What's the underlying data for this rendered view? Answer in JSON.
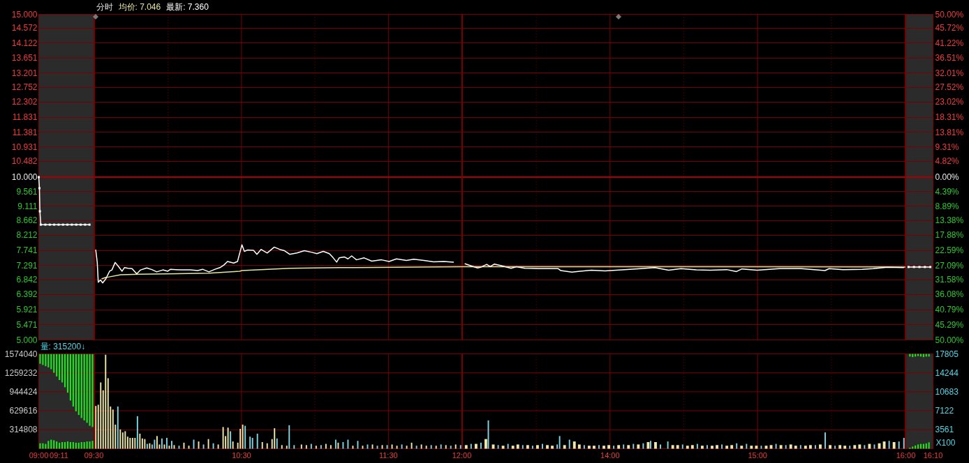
{
  "chart_data": [
    {
      "type": "line",
      "grid": true,
      "tick_labels": "y",
      "marker": "square",
      "xlim": [
        9,
        9.5
      ],
      "ylim": [
        5,
        15
      ],
      "yticks": [
        {
          "value": 5,
          "label": "5.000"
        },
        5.471,
        5.921,
        6.392,
        6.842,
        7.291,
        7.741,
        8.212,
        8.662,
        9.111,
        9.561,
        {
          "value": 10,
          "label": "10.000"
        },
        10.482,
        10.931,
        11.381,
        11.831,
        12.302,
        12.752,
        13.201,
        13.651,
        14.122,
        14.572,
        {
          "value": 15,
          "label": "15.000"
        }
      ],
      "ref_lines": [
        {
          "axis": "y",
          "value": 10,
          "color": "#a80000"
        }
      ],
      "bands": [
        {
          "axis": "x",
          "from": 9,
          "to": 9.5,
          "color": "#2b2b2b"
        }
      ],
      "series": [
        {
          "color": "#ffffff",
          "x": [
            9,
            9.0063,
            9.0106,
            9.0188,
            9.06,
            9.1,
            9.14,
            9.18,
            9.22,
            9.26,
            9.3,
            9.34,
            9.38,
            9.42,
            9.46
          ],
          "values": [
            10.0,
            9.66,
            8.95,
            8.54,
            8.54,
            8.54,
            8.54,
            8.54,
            8.54,
            8.54,
            8.54,
            8.54,
            8.54,
            8.54,
            8.54
          ]
        }
      ]
    },
    {
      "type": "line",
      "title": "分时",
      "legend": "top left",
      "grid": true,
      "tick_labels": false,
      "xlim": [
        9.5,
        12
      ],
      "xticks": [
        9.5,
        {
          "value": 10,
          "label": null
        },
        10.5,
        {
          "value": 11,
          "label": null
        },
        11.5,
        12
      ],
      "ylim": [
        5,
        15
      ],
      "yticks": [
        5,
        5.471,
        5.921,
        6.392,
        6.842,
        7.291,
        7.741,
        8.212,
        8.662,
        9.111,
        9.561,
        10,
        10.482,
        10.931,
        11.381,
        11.831,
        12.302,
        12.752,
        13.201,
        13.651,
        14.122,
        14.572,
        15
      ],
      "ref_lines": [
        {
          "axis": "y",
          "value": 10,
          "color": "#a80000"
        }
      ],
      "series": [
        {
          "name": "均价: 7.046",
          "color": "#e6e6a0",
          "x": [
            9.55,
            9.578,
            9.593,
            9.678,
            9.812,
            10.28,
            10.488,
            10.503,
            10.833,
            11.165,
            11.7,
            12.0
          ],
          "values": [
            6.88,
            6.92,
            6.93,
            7.0,
            7.02,
            7.05,
            7.11,
            7.13,
            7.2,
            7.22,
            7.24,
            7.25
          ]
        },
        {
          "name": "最新: 7.360",
          "color": "#ffffff",
          "x": [
            9.508,
            9.518,
            9.525,
            9.54,
            9.555,
            9.577,
            9.602,
            9.618,
            9.64,
            9.662,
            9.687,
            9.703,
            9.728,
            9.755,
            9.787,
            9.813,
            9.855,
            9.89,
            9.923,
            9.965,
            9.998,
            10.017,
            10.083,
            10.152,
            10.202,
            10.235,
            10.278,
            10.32,
            10.353,
            10.38,
            10.405,
            10.447,
            10.473,
            10.503,
            10.52,
            10.54,
            10.582,
            10.605,
            10.633,
            10.675,
            10.723,
            10.76,
            10.793,
            10.828,
            10.878,
            10.928,
            10.98,
            11.013,
            11.057,
            11.098,
            11.123,
            11.148,
            11.165,
            11.2,
            11.225,
            11.25,
            11.283,
            11.335,
            11.387,
            11.453,
            11.505,
            11.555,
            11.623,
            11.673,
            11.742,
            11.808,
            11.877,
            11.943
          ],
          "values": [
            7.76,
            7.38,
            6.77,
            6.84,
            6.75,
            6.88,
            7.11,
            7.15,
            7.38,
            7.26,
            7.11,
            7.22,
            7.2,
            7.19,
            7.03,
            7.15,
            7.21,
            7.16,
            7.09,
            7.15,
            7.11,
            7.17,
            7.15,
            7.15,
            7.13,
            7.17,
            7.09,
            7.17,
            7.22,
            7.3,
            7.41,
            7.36,
            7.41,
            7.92,
            7.72,
            7.76,
            7.75,
            7.63,
            7.78,
            7.67,
            7.85,
            7.78,
            7.74,
            7.63,
            7.67,
            7.74,
            7.69,
            7.65,
            7.72,
            7.65,
            7.53,
            7.39,
            7.52,
            7.55,
            7.49,
            7.58,
            7.46,
            7.52,
            7.42,
            7.46,
            7.41,
            7.49,
            7.44,
            7.48,
            7.44,
            7.4,
            7.41,
            7.39
          ]
        }
      ]
    },
    {
      "type": "line",
      "grid": true,
      "tick_labels": false,
      "xlim": [
        13,
        16
      ],
      "xticks": [
        13,
        {
          "value": 13.5,
          "label": null
        },
        14,
        {
          "value": 14.5,
          "label": null
        },
        15,
        {
          "value": 15.5,
          "label": null
        },
        16
      ],
      "ylim": [
        5,
        15
      ],
      "yticks": [
        5,
        5.471,
        5.921,
        6.392,
        6.842,
        7.291,
        7.741,
        8.212,
        8.662,
        9.111,
        9.561,
        10,
        10.482,
        10.931,
        11.381,
        11.831,
        12.302,
        12.752,
        13.201,
        13.651,
        14.122,
        14.572,
        15
      ],
      "ref_lines": [
        {
          "axis": "y",
          "value": 10,
          "color": "#a80000"
        }
      ],
      "series": [
        {
          "color": "#e6e6a0",
          "x": [
            13.0,
            13.652,
            14.597,
            16.0
          ],
          "values": [
            7.25,
            7.25,
            7.25,
            7.24
          ]
        },
        {
          "color": "#ffffff",
          "x": [
            13.017,
            13.068,
            13.102,
            13.123,
            13.164,
            13.188,
            13.216,
            13.263,
            13.329,
            13.366,
            13.422,
            13.516,
            13.647,
            13.666,
            13.741,
            13.797,
            13.873,
            13.966,
            14.079,
            14.209,
            14.303,
            14.397,
            14.481,
            14.585,
            14.679,
            14.791,
            14.857,
            14.894,
            14.997,
            15.147,
            15.297,
            15.457,
            15.485,
            15.579,
            15.71,
            15.784,
            15.878,
            15.99
          ],
          "values": [
            7.34,
            7.26,
            7.21,
            7.23,
            7.32,
            7.25,
            7.33,
            7.28,
            7.2,
            7.25,
            7.2,
            7.19,
            7.19,
            7.13,
            7.08,
            7.11,
            7.14,
            7.12,
            7.15,
            7.19,
            7.22,
            7.14,
            7.19,
            7.15,
            7.14,
            7.16,
            7.1,
            7.18,
            7.14,
            7.19,
            7.19,
            7.13,
            7.19,
            7.16,
            7.17,
            7.19,
            7.23,
            7.22
          ]
        }
      ]
    },
    {
      "type": "line",
      "grid": true,
      "tick_labels": "y",
      "marker": "square",
      "xlim": [
        16,
        16.1667
      ],
      "xticks": [
        16,
        16.1667
      ],
      "ylim": [
        -50,
        50
      ],
      "yticks": [
        {
          "value": -50,
          "label": "50.00%"
        },
        {
          "value": -45.29,
          "label": "45.29%"
        },
        {
          "value": -40.79,
          "label": "40.79%"
        },
        {
          "value": -36.08,
          "label": "36.08%"
        },
        {
          "value": -31.58,
          "label": "31.58%"
        },
        {
          "value": -27.09,
          "label": "27.09%"
        },
        {
          "value": -22.59,
          "label": "22.59%"
        },
        {
          "value": -17.88,
          "label": "17.88%"
        },
        {
          "value": -13.38,
          "label": "13.38%"
        },
        {
          "value": -8.89,
          "label": "8.89%"
        },
        {
          "value": -4.39,
          "label": "4.39%"
        },
        {
          "value": 0,
          "label": "0.00%"
        },
        {
          "value": 4.82,
          "label": "4.82%"
        },
        {
          "value": 9.31,
          "label": "9.31%"
        },
        {
          "value": 13.81,
          "label": "13.81%"
        },
        {
          "value": 18.31,
          "label": "18.31%"
        },
        {
          "value": 23.02,
          "label": "23.02%"
        },
        {
          "value": 27.52,
          "label": "27.52%"
        },
        {
          "value": 32.01,
          "label": "32.01%"
        },
        {
          "value": 36.51,
          "label": "36.51%"
        },
        {
          "value": 41.22,
          "label": "41.22%"
        },
        {
          "value": 45.72,
          "label": "45.72%"
        },
        {
          "value": 50,
          "label": "50.00%"
        }
      ],
      "ref_lines": [
        {
          "axis": "y",
          "value": 0,
          "color": "#a80000"
        }
      ],
      "bands": [
        {
          "axis": "x",
          "from": 16,
          "to": 16.1667,
          "color": "#2b2b2b"
        }
      ],
      "series": [
        {
          "color": "#ffffff",
          "x": [
            16.0167,
            16.05,
            16.0833,
            16.1167,
            16.15
          ],
          "values": [
            -27.6,
            -27.6,
            -27.6,
            -27.6,
            -27.6
          ]
        }
      ]
    },
    {
      "type": "bar",
      "title": "量: 315200↓",
      "grid": true,
      "xlim": [
        9,
        9.5
      ],
      "xticks": [
        {
          "value": 9,
          "label": "09:00"
        },
        {
          "value": 9.1833,
          "label": "09:11"
        },
        {
          "value": 9.5,
          "label": "09:30"
        }
      ],
      "ylim": [
        0,
        1574040
      ],
      "yticks": [
        314808,
        629616,
        944424,
        1259232,
        1574040
      ],
      "bands": [
        {
          "axis": "x",
          "from": 9,
          "to": 9.5,
          "color": "#2b2b2b"
        }
      ],
      "series": [
        {
          "color": "#22e022",
          "x": [
            9.0125,
            9.0375,
            9.0625,
            9.0875,
            9.1125,
            9.1375,
            9.1625,
            9.1875,
            9.2125,
            9.2375,
            9.2625,
            9.2875,
            9.3125,
            9.3375,
            9.3625,
            9.3875,
            9.4125,
            9.4375,
            9.4625,
            9.4875
          ],
          "base": [
            1410000,
            1390000,
            1370000,
            1350000,
            1320000,
            1260000,
            1200000,
            1140000,
            1100000,
            1020000,
            930000,
            800000,
            700000,
            620000,
            560000,
            510000,
            470000,
            430000,
            380000,
            360000
          ],
          "values": [
            160000,
            180000,
            200000,
            220000,
            250000,
            310000,
            370000,
            430000,
            470000,
            550000,
            640000,
            770000,
            870000,
            950000,
            1010000,
            1060000,
            1100000,
            1140000,
            1190000,
            1210000
          ]
        },
        {
          "color": "#22e022",
          "x": [
            9.0125,
            9.0375,
            9.0625,
            9.0875,
            9.1125,
            9.1375,
            9.1625,
            9.1875,
            9.2125,
            9.2375,
            9.2625,
            9.2875,
            9.3125,
            9.3375,
            9.3625,
            9.3875,
            9.4125,
            9.4375,
            9.4625,
            9.4875
          ],
          "values": [
            90000,
            90000,
            80000,
            130000,
            150000,
            140000,
            120000,
            100000,
            110000,
            110000,
            120000,
            110000,
            110000,
            100000,
            100000,
            110000,
            110000,
            120000,
            120000,
            130000
          ]
        }
      ]
    },
    {
      "type": "bar",
      "grid": true,
      "tick_labels": "x",
      "xlim": [
        9.5,
        12
      ],
      "xticks": [
        {
          "value": 10,
          "label": null
        },
        {
          "value": 10.5,
          "label": "10:30"
        },
        {
          "value": 11,
          "label": null
        },
        {
          "value": 11.5,
          "label": "11:30"
        },
        {
          "value": 12,
          "label": "12:00"
        }
      ],
      "ylim": [
        0,
        1574040
      ],
      "yticks": [
        314808,
        629616,
        944424,
        1259232,
        1574040
      ],
      "series": [
        {
          "color": "#eee8aa",
          "x": [
            9.5083,
            9.525,
            9.5417,
            9.5583,
            9.575,
            9.5917,
            9.6083,
            9.625,
            9.6417,
            9.675,
            9.6917,
            9.7083,
            9.725,
            9.7417,
            9.7583,
            9.775,
            9.8083,
            9.825,
            9.8417,
            9.875,
            9.925,
            9.9417,
            9.975,
            10.0083,
            10.0417,
            10.1083,
            10.1417,
            10.2083,
            10.275,
            10.3417,
            10.375,
            10.3917,
            10.4083,
            10.4417,
            10.475,
            10.4917,
            10.5083,
            10.6417,
            10.675,
            10.7083,
            10.725,
            10.775,
            10.8083,
            10.9083,
            10.9417,
            11.0083,
            11.075,
            11.1083,
            11.1583,
            11.2583,
            11.325,
            11.3917,
            11.4583,
            11.525,
            11.5583,
            11.625,
            11.6583,
            11.725,
            11.7583,
            11.825,
            11.8917,
            11.9583
          ],
          "values": [
            710000,
            730000,
            1100000,
            970000,
            1560000,
            1170000,
            700000,
            650000,
            400000,
            320000,
            270000,
            290000,
            200000,
            180000,
            180000,
            180000,
            250000,
            170000,
            160000,
            90000,
            210000,
            70000,
            70000,
            50000,
            60000,
            100000,
            50000,
            120000,
            160000,
            70000,
            360000,
            210000,
            350000,
            120000,
            100000,
            330000,
            400000,
            110000,
            90000,
            160000,
            340000,
            60000,
            50000,
            70000,
            60000,
            50000,
            80000,
            60000,
            100000,
            50000,
            50000,
            70000,
            60000,
            70000,
            50000,
            50000,
            100000,
            70000,
            50000,
            50000,
            60000,
            70000
          ]
        },
        {
          "color": "#7fd4e4",
          "x": [
            9.6583,
            9.7917,
            9.8583,
            9.8917,
            9.9083,
            9.9583,
            9.9917,
            10.025,
            10.075,
            10.175,
            10.2417,
            10.3083,
            10.425,
            10.525,
            10.5583,
            10.575,
            10.6083,
            10.7417,
            10.825,
            10.8583,
            10.975,
            11.0417,
            11.1417,
            11.1917,
            11.225,
            11.2917,
            11.3583,
            11.425,
            11.4917,
            11.5917,
            11.6917,
            11.7917,
            11.8583,
            11.925,
            11.9917
          ],
          "values": [
            700000,
            540000,
            80000,
            70000,
            150000,
            170000,
            180000,
            130000,
            50000,
            150000,
            70000,
            90000,
            290000,
            380000,
            200000,
            180000,
            250000,
            170000,
            390000,
            60000,
            80000,
            60000,
            150000,
            110000,
            150000,
            130000,
            70000,
            50000,
            60000,
            70000,
            50000,
            60000,
            70000,
            50000,
            60000
          ]
        }
      ]
    },
    {
      "type": "bar",
      "grid": true,
      "tick_labels": "x",
      "xlim": [
        13,
        16
      ],
      "xticks": [
        {
          "value": 13.5,
          "label": null
        },
        {
          "value": 14,
          "label": "14:00"
        },
        {
          "value": 14.5,
          "label": null
        },
        {
          "value": 15,
          "label": "15:00"
        },
        {
          "value": 15.5,
          "label": null
        }
      ],
      "ylim": [
        0,
        1574040
      ],
      "yticks": [
        314808,
        629616,
        944424,
        1259232,
        1574040
      ],
      "series": [
        {
          "color": "#eee8aa",
          "x": [
            13.025,
            13.0917,
            13.1583,
            13.2083,
            13.275,
            13.3417,
            13.375,
            13.4417,
            13.5083,
            13.575,
            13.6083,
            13.6917,
            13.7583,
            13.7917,
            13.8583,
            13.8917,
            13.9583,
            13.9917,
            14.0583,
            14.125,
            14.1917,
            14.2583,
            14.3083,
            14.425,
            14.4583,
            14.525,
            14.5583,
            14.625,
            14.6917,
            14.725,
            14.7917,
            14.825,
            14.8917,
            14.9583,
            14.9917,
            15.0583,
            15.0917,
            15.1583,
            15.225,
            15.2583,
            15.325,
            15.3583,
            15.425,
            15.4917,
            15.5583,
            15.5917,
            15.6583,
            15.6917,
            15.7583,
            15.825,
            15.8583,
            15.925
          ],
          "values": [
            60000,
            80000,
            160000,
            70000,
            50000,
            50000,
            70000,
            60000,
            60000,
            60000,
            50000,
            60000,
            120000,
            70000,
            50000,
            50000,
            50000,
            60000,
            60000,
            60000,
            70000,
            110000,
            110000,
            60000,
            60000,
            50000,
            60000,
            50000,
            50000,
            60000,
            50000,
            60000,
            50000,
            50000,
            50000,
            50000,
            60000,
            60000,
            70000,
            50000,
            50000,
            60000,
            70000,
            60000,
            60000,
            50000,
            60000,
            70000,
            80000,
            90000,
            120000,
            110000
          ]
        },
        {
          "color": "#7fd4e4",
          "x": [
            13.0583,
            13.125,
            13.175,
            13.2417,
            13.3083,
            13.4083,
            13.475,
            13.5417,
            13.6417,
            13.6583,
            13.725,
            13.825,
            13.925,
            14.025,
            14.0917,
            14.1583,
            14.225,
            14.275,
            14.3417,
            14.3917,
            14.4917,
            14.5917,
            14.6583,
            14.7583,
            14.8583,
            14.925,
            15.025,
            15.125,
            15.1917,
            15.2917,
            15.3917,
            15.4583,
            15.525,
            15.625,
            15.725,
            15.7917,
            15.8917,
            15.9583,
            15.9917
          ],
          "values": [
            80000,
            100000,
            470000,
            60000,
            80000,
            60000,
            50000,
            80000,
            70000,
            210000,
            150000,
            60000,
            60000,
            50000,
            70000,
            80000,
            90000,
            130000,
            70000,
            120000,
            70000,
            80000,
            60000,
            70000,
            90000,
            80000,
            50000,
            80000,
            60000,
            60000,
            60000,
            270000,
            50000,
            50000,
            60000,
            70000,
            130000,
            120000,
            180000
          ]
        }
      ]
    },
    {
      "type": "bar",
      "ylabel": "X100",
      "grid": true,
      "xlim": [
        16,
        16.1667
      ],
      "xticks": [
        {
          "value": 16,
          "label": "16:00"
        },
        {
          "value": 16.1667,
          "label": "16:10"
        }
      ],
      "ylim": [
        0,
        17805
      ],
      "yticks": [
        3561,
        7122,
        10683,
        14244,
        17805
      ],
      "bands": [
        {
          "axis": "x",
          "from": 16,
          "to": 16.1667,
          "color": "#2b2b2b"
        }
      ],
      "series": [
        {
          "color": "#22e022",
          "x": [
            16.025,
            16.0417,
            16.0583,
            16.075,
            16.0917,
            16.1083,
            16.125,
            16.1417
          ],
          "base": [
            17300,
            17200,
            17300,
            17400,
            17300,
            17200,
            17300,
            17300
          ],
          "values": [
            500,
            600,
            500,
            400,
            500,
            600,
            500,
            500
          ]
        },
        {
          "color": "#22e022",
          "x": [
            16.025,
            16.0417,
            16.0583,
            16.075,
            16.0917,
            16.1083,
            16.125,
            16.1417
          ],
          "values": [
            200,
            400,
            600,
            800,
            900,
            900,
            1000,
            1200
          ]
        }
      ]
    }
  ]
}
